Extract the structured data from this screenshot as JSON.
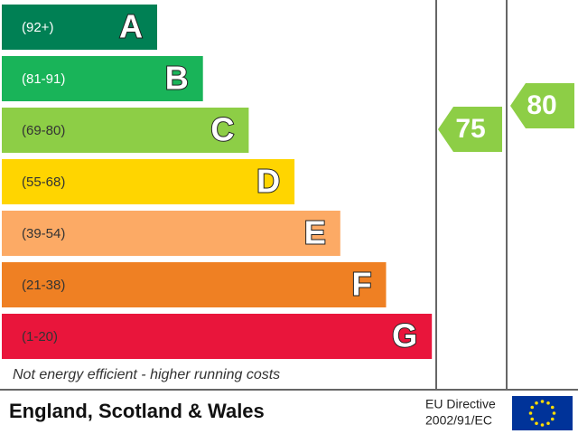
{
  "bands": [
    {
      "range": "(92+)",
      "letter": "A",
      "color": "#008054",
      "text_color": "#ffffff"
    },
    {
      "range": "(81-91)",
      "letter": "B",
      "color": "#19b459",
      "text_color": "#ffffff"
    },
    {
      "range": "(69-80)",
      "letter": "C",
      "color": "#8dce46",
      "text_color": "#333333"
    },
    {
      "range": "(55-68)",
      "letter": "D",
      "color": "#ffd500",
      "text_color": "#333333"
    },
    {
      "range": "(39-54)",
      "letter": "E",
      "color": "#fcaa65",
      "text_color": "#333333"
    },
    {
      "range": "(21-38)",
      "letter": "F",
      "color": "#ef8023",
      "text_color": "#333333"
    },
    {
      "range": "(1-20)",
      "letter": "G",
      "color": "#e9153b",
      "text_color": "#333333"
    }
  ],
  "current": {
    "value": 75,
    "color": "#8dce46"
  },
  "potential": {
    "value": 80,
    "color": "#8dce46"
  },
  "footnote": "Not energy efficient - higher running costs",
  "footer": {
    "region": "England, Scotland & Wales",
    "directive_line1": "EU Directive",
    "directive_line2": "2002/91/EC"
  }
}
